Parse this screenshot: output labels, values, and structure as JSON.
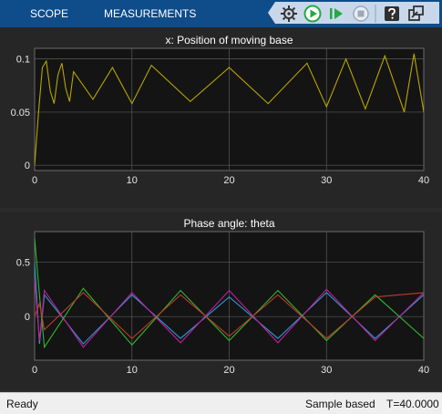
{
  "toolstrip": {
    "tabs": [
      "SCOPE",
      "MEASUREMENTS"
    ],
    "buttons": [
      "settings-icon",
      "run-icon",
      "step-forward-icon",
      "stop-icon",
      "help-icon",
      "undock-icon"
    ]
  },
  "colors": {
    "toolstrip_bg": "#0e4c8a",
    "toolbar_bg": "#c8d8ea",
    "run_green": "#28a745",
    "axes_bg": "#141414",
    "grid": "#5a5a5a",
    "x_trace": "#b8a600",
    "theta_blue": "#2a9bd6",
    "theta_magenta": "#c21f9e",
    "theta_green": "#2fb82f",
    "theta_red": "#c23a2a"
  },
  "chart_data": [
    {
      "type": "line",
      "title": "x: Position of moving base",
      "xlim": [
        0,
        40
      ],
      "ylim": [
        -0.005,
        0.11
      ],
      "xticks": [
        0,
        10,
        20,
        30,
        40
      ],
      "yticks": [
        0,
        0.05,
        0.1
      ],
      "ytick_labels": [
        "0",
        "0.05",
        "0.1"
      ],
      "grid": true,
      "series": [
        {
          "color": "#b8a600",
          "x": [
            0,
            0.4,
            0.8,
            1.2,
            1.6,
            2.0,
            2.4,
            2.8,
            3.2,
            3.6,
            4.0,
            6,
            8,
            10,
            12,
            16,
            20,
            24,
            28,
            30,
            32,
            34,
            36,
            38,
            39,
            40
          ],
          "y": [
            0,
            0.05,
            0.092,
            0.098,
            0.07,
            0.058,
            0.085,
            0.096,
            0.072,
            0.06,
            0.088,
            0.062,
            0.092,
            0.058,
            0.094,
            0.06,
            0.092,
            0.058,
            0.096,
            0.055,
            0.1,
            0.053,
            0.103,
            0.05,
            0.105,
            0.05
          ]
        }
      ]
    },
    {
      "type": "line",
      "title": "Phase angle: theta",
      "xlim": [
        0,
        40
      ],
      "ylim": [
        -0.4,
        0.78
      ],
      "xticks": [
        0,
        10,
        20,
        30,
        40
      ],
      "yticks": [
        0,
        0.5
      ],
      "ytick_labels": [
        "0",
        "0.5"
      ],
      "grid": true,
      "series": [
        {
          "color": "#2a9bd6",
          "x": [
            0,
            0.5,
            1,
            5,
            10,
            15,
            20,
            25,
            30,
            35,
            40
          ],
          "y": [
            0.5,
            -0.25,
            0.2,
            -0.25,
            0.2,
            -0.2,
            0.18,
            -0.2,
            0.22,
            -0.2,
            0.2
          ]
        },
        {
          "color": "#c21f9e",
          "x": [
            0,
            0.5,
            1,
            5,
            10,
            15,
            20,
            25,
            30,
            35,
            40
          ],
          "y": [
            0.35,
            -0.22,
            0.24,
            -0.28,
            0.22,
            -0.24,
            0.24,
            -0.24,
            0.25,
            -0.22,
            0.22
          ]
        },
        {
          "color": "#2fb82f",
          "x": [
            0,
            0.5,
            1,
            5,
            10,
            15,
            20,
            25,
            30,
            35,
            40
          ],
          "y": [
            0.72,
            0.2,
            -0.28,
            0.26,
            -0.26,
            0.24,
            -0.22,
            0.24,
            -0.22,
            0.2,
            -0.2
          ]
        },
        {
          "color": "#c23a2a",
          "x": [
            0,
            0.5,
            1,
            5,
            10,
            15,
            20,
            25,
            30,
            35,
            40
          ],
          "y": [
            0.0,
            0.12,
            -0.12,
            0.22,
            -0.2,
            0.2,
            -0.18,
            0.2,
            -0.2,
            0.18,
            0.22
          ]
        }
      ]
    }
  ],
  "status": {
    "left": "Ready",
    "mode": "Sample based",
    "time": "T=40.0000"
  }
}
